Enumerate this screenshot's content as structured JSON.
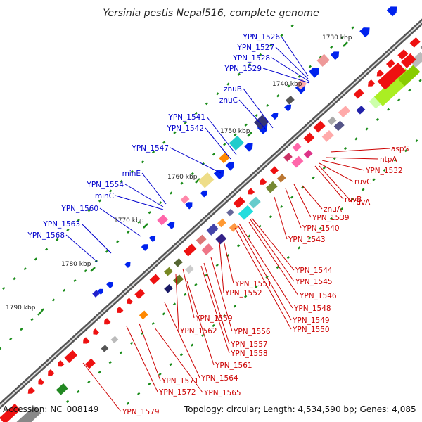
{
  "title": "Yersinia pestis Nepal516, complete genome",
  "footer": {
    "accession": "Accession: NC_008149",
    "summary": "Topology: circular; Length: 4,534,590 bp; Genes: 4,085"
  },
  "colors": {
    "forward_label": "#0000cc",
    "reverse_label": "#cc0000",
    "backbone": "#888888",
    "tick": "#228b22"
  },
  "kbp_marks": [
    {
      "text": "1730 kbp"
    },
    {
      "text": "1740 kbp"
    },
    {
      "text": "1750 kbp"
    },
    {
      "text": "1760 kbp"
    },
    {
      "text": "1770 kbp"
    },
    {
      "text": "1780 kbp"
    },
    {
      "text": "1790 kbp"
    }
  ],
  "gene_labels_forward": [
    "YPN_1526",
    "YPN_1527",
    "YPN_1528",
    "YPN_1529",
    "znuB",
    "znuC",
    "YPN_1541",
    "YPN_1542",
    "YPN_1547",
    "minE",
    "YPN_1554",
    "minC",
    "YPN_1560",
    "YPN_1563",
    "YPN_1568"
  ],
  "gene_labels_reverse": [
    "aspS",
    "ntpA",
    "YPN_1532",
    "ruvC",
    "ruvB",
    "ruvA",
    "znuA",
    "YPN_1539",
    "YPN_1540",
    "YPN_1543",
    "YPN_1544",
    "YPN_1545",
    "YPN_1546",
    "YPN_1548",
    "YPN_1549",
    "YPN_1550",
    "YPN_1551",
    "YPN_1552",
    "YPN_1559",
    "YPN_1556",
    "YPN_1562",
    "YPN_1557",
    "YPN_1558",
    "YPN_1561",
    "YPN_1564",
    "YPN_1571",
    "YPN_1572",
    "YPN_1565",
    "YPN_1579"
  ]
}
